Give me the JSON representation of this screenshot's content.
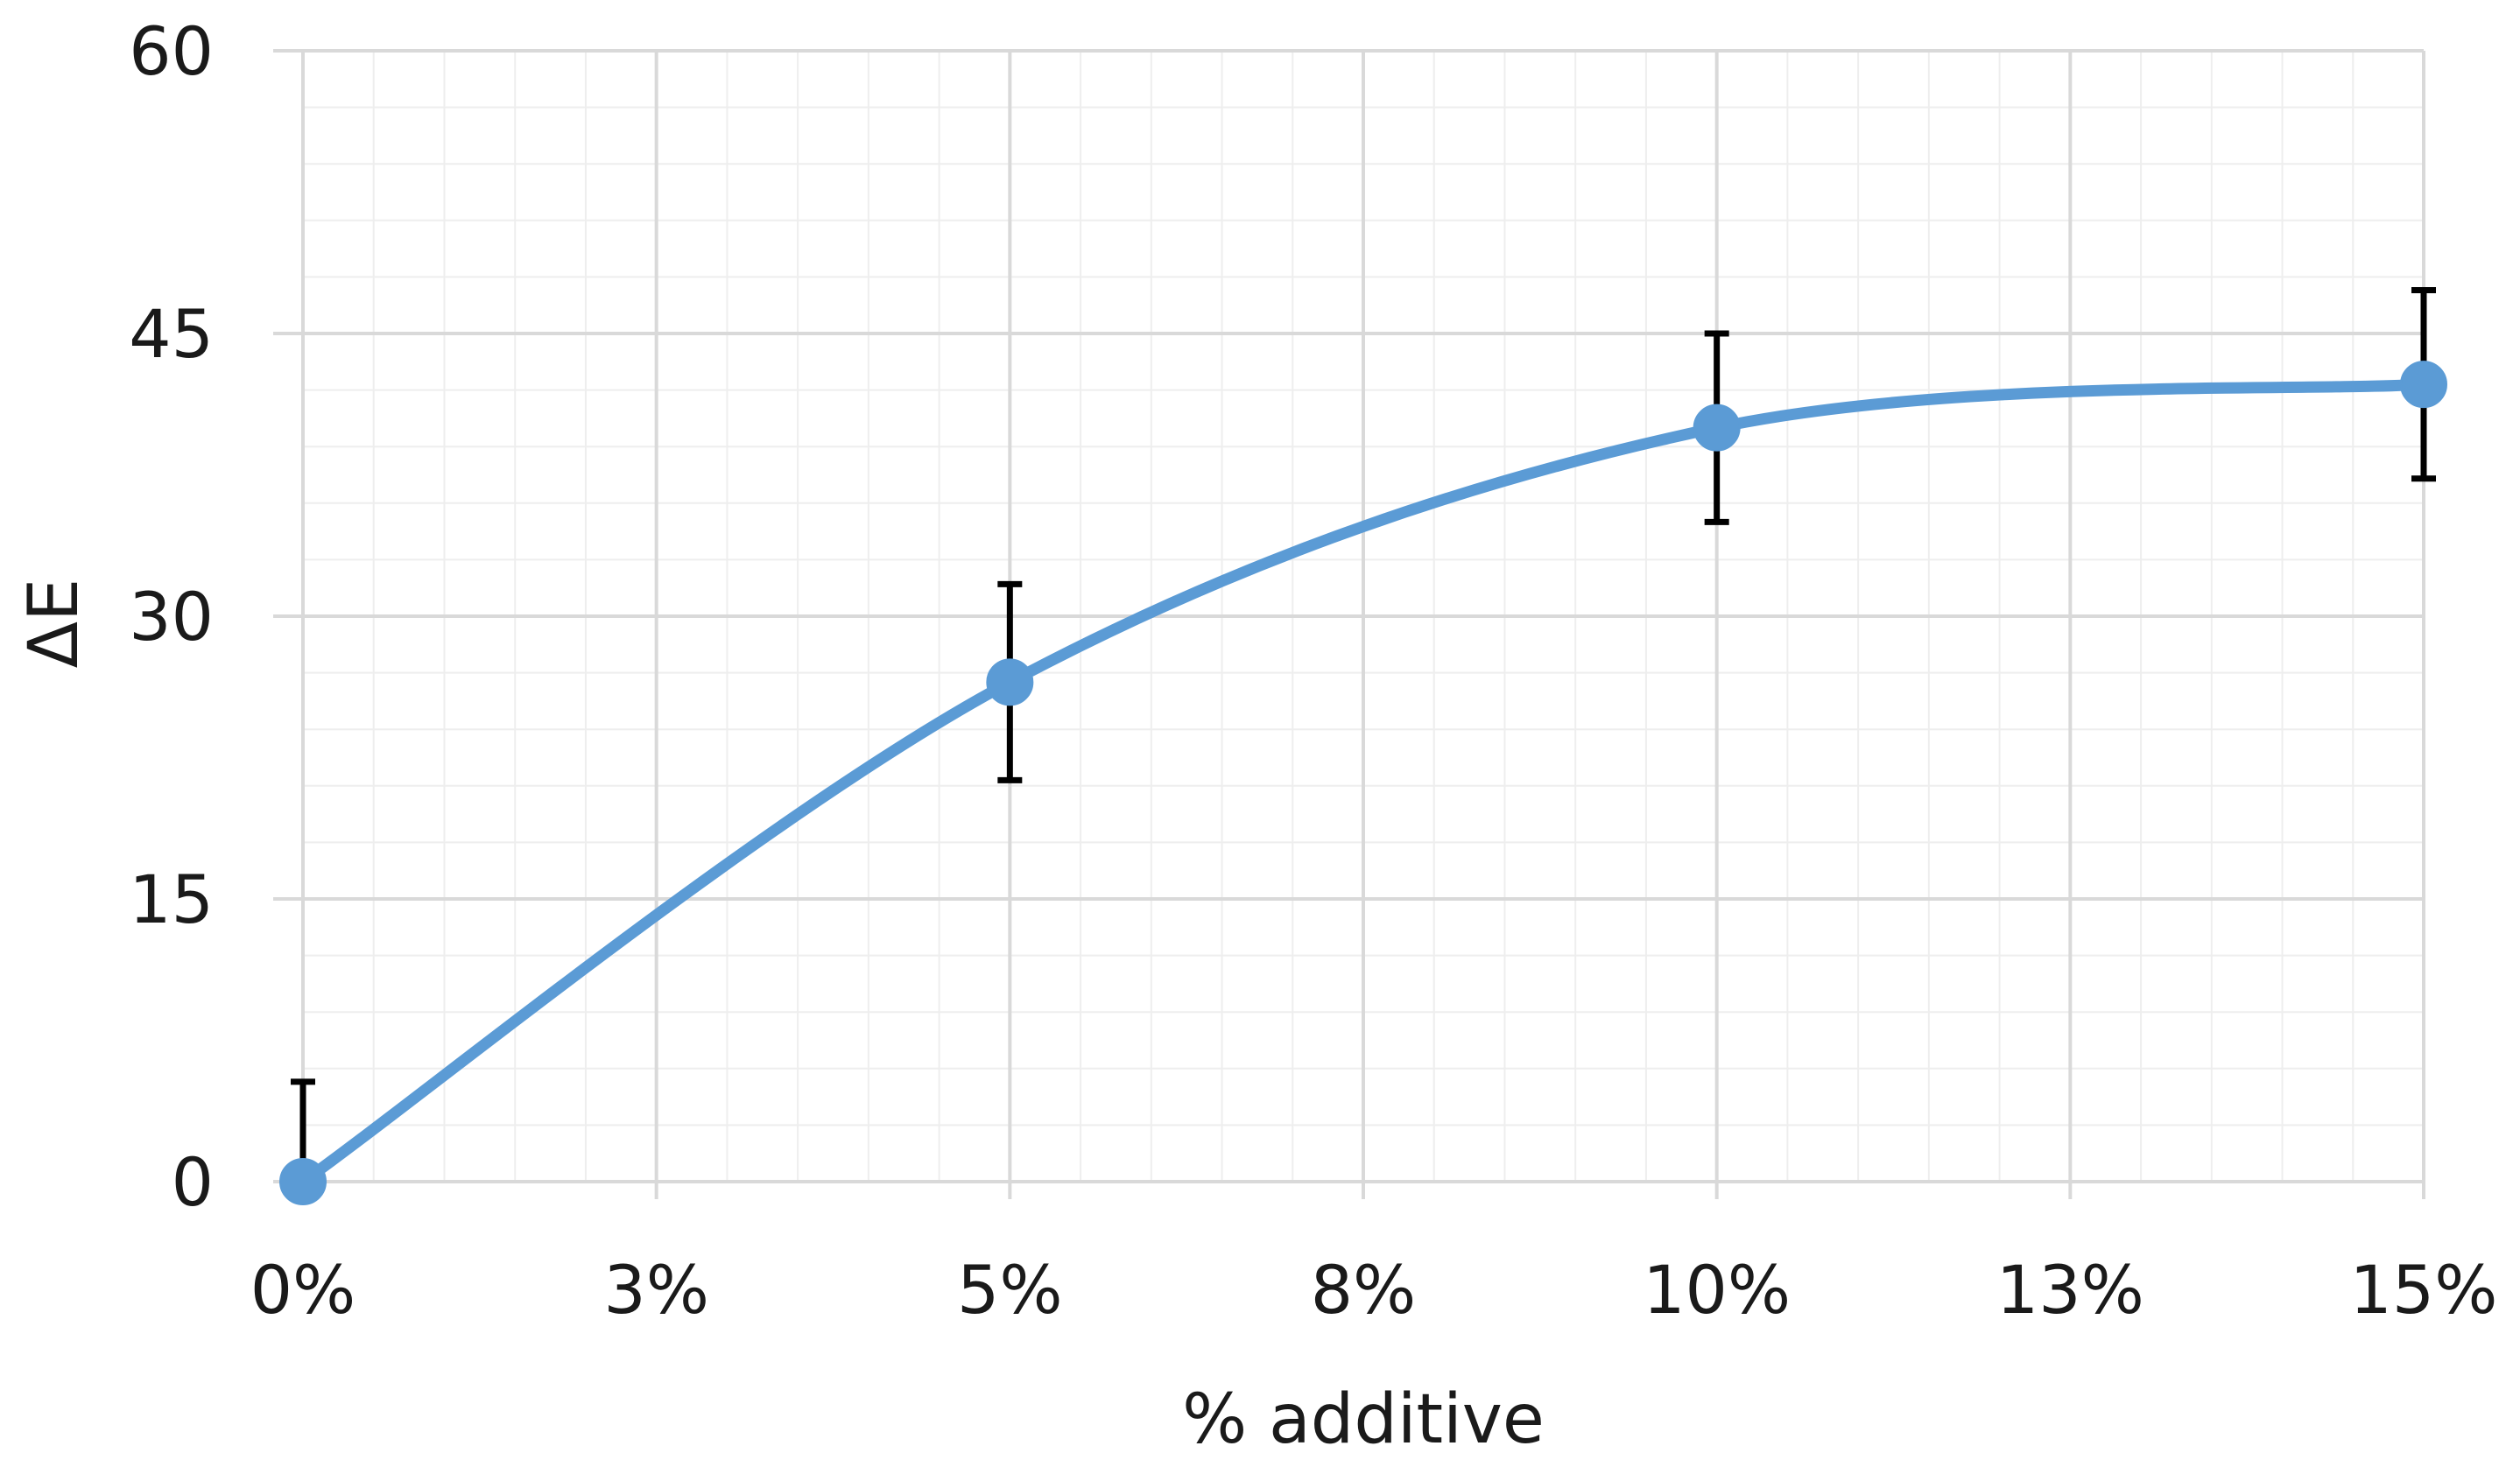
{
  "chart_data": {
    "type": "line",
    "title": "",
    "xlabel": "% additive",
    "ylabel": "ΔE",
    "x_tick_labels": [
      "0%",
      "3%",
      "5%",
      "8%",
      "10%",
      "13%",
      "15%"
    ],
    "y_tick_labels": [
      "0",
      "15",
      "30",
      "45",
      "60"
    ],
    "xlim": [
      0,
      15
    ],
    "ylim": [
      0,
      60
    ],
    "x_major_step": 2.5,
    "y_major_step": 15,
    "minor_grid_divisions": 5,
    "grid": true,
    "smooth": true,
    "legend": "none",
    "series": [
      {
        "x": [
          0,
          5,
          10,
          15
        ],
        "y": [
          0,
          26.5,
          40,
          42.3
        ],
        "error": [
          5.3,
          5.2,
          5,
          5
        ],
        "color": "#5b9bd5"
      }
    ],
    "error_bar_color": "#000000",
    "grid_major_color": "#d9d9d9",
    "grid_minor_color": "#eeeeee"
  }
}
